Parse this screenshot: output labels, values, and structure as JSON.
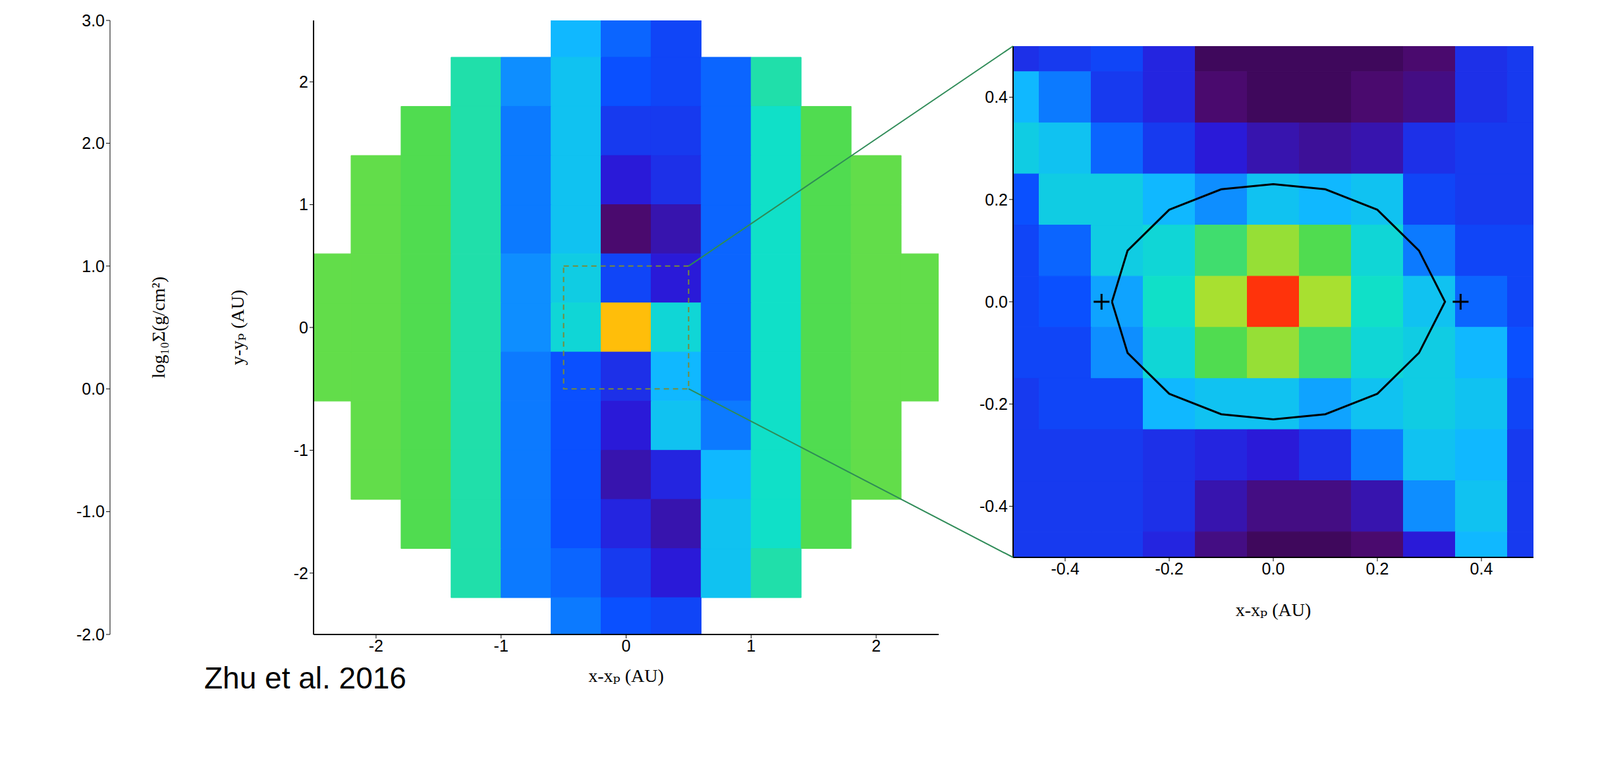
{
  "chart_data": [
    {
      "type": "heatmap",
      "x_label": "x-xₚ (AU)",
      "y_label": "y-yₚ (AU)",
      "annotation": "Zhu et al. 2016",
      "xlim": [
        -2.5,
        2.5
      ],
      "ylim": [
        -2.5,
        2.5
      ],
      "xticks": [
        -2,
        -1,
        0,
        1,
        2
      ],
      "yticks": [
        -2,
        -1,
        0,
        1,
        2
      ],
      "x_edges": [
        -2.6,
        -2.2,
        -1.8,
        -1.4,
        -1.0,
        -0.6,
        -0.2,
        0.2,
        0.6,
        1.0,
        1.4,
        1.8,
        2.2,
        2.6
      ],
      "y_edges": [
        2.6,
        2.2,
        1.8,
        1.4,
        1.0,
        0.6,
        0.2,
        -0.2,
        -0.6,
        -1.0,
        -1.4,
        -1.8,
        -2.2,
        -2.6
      ],
      "cells": [
        [
          null,
          null,
          null,
          null,
          null,
          0.0,
          -0.4,
          -0.6,
          null,
          null,
          null,
          null,
          null
        ],
        [
          null,
          null,
          null,
          0.5,
          -0.2,
          0.1,
          -0.5,
          -0.6,
          -0.4,
          0.5,
          null,
          null,
          null
        ],
        [
          null,
          null,
          0.8,
          0.5,
          -0.3,
          0.1,
          -0.7,
          -0.7,
          -0.4,
          0.4,
          0.8,
          null,
          null
        ],
        [
          null,
          0.9,
          0.8,
          0.5,
          -0.3,
          0.1,
          -1.0,
          -0.8,
          -0.4,
          0.4,
          0.8,
          0.9,
          null
        ],
        [
          null,
          0.9,
          0.8,
          0.5,
          -0.3,
          0.1,
          -1.5,
          -1.2,
          -0.4,
          0.4,
          0.8,
          0.9,
          null
        ],
        [
          0.9,
          0.9,
          0.8,
          0.5,
          -0.2,
          0.2,
          -0.6,
          -1.0,
          -0.4,
          0.4,
          0.8,
          0.9,
          0.9
        ],
        [
          0.9,
          0.9,
          0.8,
          0.5,
          -0.2,
          0.3,
          2.0,
          0.3,
          -0.4,
          0.4,
          0.8,
          0.9,
          0.9
        ],
        [
          0.9,
          0.9,
          0.8,
          0.5,
          -0.3,
          -0.5,
          -0.8,
          0.0,
          -0.4,
          0.4,
          0.8,
          0.9,
          0.9
        ],
        [
          null,
          0.9,
          0.8,
          0.5,
          -0.3,
          -0.5,
          -1.0,
          0.1,
          -0.3,
          0.4,
          0.8,
          0.9,
          null
        ],
        [
          null,
          0.9,
          0.8,
          0.5,
          -0.3,
          -0.5,
          -1.2,
          -0.9,
          0.0,
          0.4,
          0.8,
          0.9,
          null
        ],
        [
          null,
          null,
          0.8,
          0.5,
          -0.3,
          -0.5,
          -0.9,
          -1.2,
          0.1,
          0.4,
          0.8,
          null,
          null
        ],
        [
          null,
          null,
          null,
          0.5,
          -0.3,
          -0.4,
          -0.7,
          -1.0,
          0.1,
          0.5,
          null,
          null,
          null
        ],
        [
          null,
          null,
          null,
          null,
          null,
          -0.3,
          -0.5,
          -0.6,
          null,
          null,
          null,
          null,
          null
        ]
      ],
      "colorbar": {
        "range": [
          -2,
          3
        ],
        "ticks": [
          {
            "value": -2,
            "label": "-2.0"
          },
          {
            "value": -1,
            "label": "-1.0"
          },
          {
            "value": 0,
            "label": "0.0"
          },
          {
            "value": 1,
            "label": "1.0"
          },
          {
            "value": 2,
            "label": "2.0"
          },
          {
            "value": 3,
            "label": "3.0"
          }
        ],
        "label": "log₁₀Σ(g/cm²)"
      }
    },
    {
      "type": "heatmap",
      "x_label": "x-xₚ (AU)",
      "xlim": [
        -0.5,
        0.5
      ],
      "ylim": [
        -0.5,
        0.5
      ],
      "xticks": [
        -0.4,
        -0.2,
        {
          "value": 0,
          "label": "0.0"
        },
        0.2,
        0.4
      ],
      "yticks": [
        -0.4,
        -0.2,
        {
          "value": 0,
          "label": "0.0"
        },
        0.2,
        0.4
      ],
      "x_edges": [
        -0.55,
        -0.45,
        -0.35,
        -0.25,
        -0.15,
        -0.05,
        0.05,
        0.15,
        0.25,
        0.35,
        0.45,
        0.55
      ],
      "y_edges": [
        0.55,
        0.45,
        0.35,
        0.25,
        0.15,
        0.05,
        -0.05,
        -0.15,
        -0.25,
        -0.35,
        -0.45,
        -0.55
      ],
      "cells": [
        [
          -0.8,
          -0.7,
          -0.6,
          -0.9,
          -1.6,
          -1.6,
          -1.6,
          -1.6,
          -1.5,
          -0.8,
          -0.7
        ],
        [
          0.0,
          -0.3,
          -0.7,
          -0.9,
          -1.5,
          -1.6,
          -1.6,
          -1.5,
          -1.4,
          -0.8,
          -0.7
        ],
        [
          0.2,
          0.1,
          -0.4,
          -0.7,
          -1.0,
          -1.2,
          -1.3,
          -1.2,
          -0.8,
          -0.7,
          -0.7
        ],
        [
          -0.5,
          0.2,
          0.2,
          0.0,
          -0.2,
          0.1,
          0.0,
          0.1,
          -0.6,
          -0.7,
          -0.7
        ],
        [
          -0.6,
          -0.4,
          0.2,
          0.3,
          0.7,
          1.2,
          0.8,
          0.3,
          -0.3,
          -0.6,
          -0.6
        ],
        [
          -0.6,
          -0.5,
          -0.1,
          0.4,
          1.3,
          2.8,
          1.3,
          0.4,
          0.1,
          -0.4,
          -0.6
        ],
        [
          -0.6,
          -0.6,
          -0.2,
          0.3,
          0.8,
          1.2,
          0.7,
          0.3,
          0.2,
          0.0,
          -0.5
        ],
        [
          -0.7,
          -0.6,
          -0.6,
          0.0,
          0.1,
          0.1,
          -0.1,
          0.1,
          0.2,
          0.1,
          -0.6
        ],
        [
          -0.7,
          -0.7,
          -0.7,
          -0.8,
          -0.9,
          -1.0,
          -0.8,
          -0.3,
          0.1,
          0.0,
          -0.7
        ],
        [
          -0.7,
          -0.7,
          -0.7,
          -0.8,
          -1.2,
          -1.4,
          -1.4,
          -1.2,
          -0.2,
          0.1,
          -0.7
        ],
        [
          -0.7,
          -0.7,
          -0.7,
          -0.9,
          -1.4,
          -1.6,
          -1.6,
          -1.5,
          -1.0,
          0.0,
          -0.7
        ]
      ],
      "curve": {
        "x": [
          -0.31,
          -0.28,
          -0.2,
          -0.1,
          0,
          0.1,
          0.2,
          0.28,
          0.33,
          0.28,
          0.2,
          0.1,
          0,
          -0.1,
          -0.2,
          -0.28,
          -0.31
        ],
        "y": [
          0,
          0.1,
          0.18,
          0.22,
          0.23,
          0.22,
          0.18,
          0.1,
          0,
          -0.1,
          -0.18,
          -0.22,
          -0.23,
          -0.22,
          -0.18,
          -0.1,
          0
        ],
        "color": "#000000",
        "line_style": "solid"
      },
      "points": {
        "x": [
          -0.33,
          0.36
        ],
        "y": [
          0,
          0
        ],
        "color": "#000000",
        "marker": "cross"
      }
    }
  ]
}
